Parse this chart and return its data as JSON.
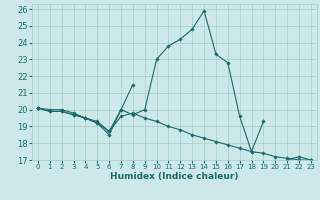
{
  "title": "",
  "xlabel": "Humidex (Indice chaleur)",
  "ylabel": "",
  "xlim": [
    -0.5,
    23.5
  ],
  "ylim": [
    17,
    26.3
  ],
  "yticks": [
    17,
    18,
    19,
    20,
    21,
    22,
    23,
    24,
    25,
    26
  ],
  "xticks": [
    0,
    1,
    2,
    3,
    4,
    5,
    6,
    7,
    8,
    9,
    10,
    11,
    12,
    13,
    14,
    15,
    16,
    17,
    18,
    19,
    20,
    21,
    22,
    23
  ],
  "background_color": "#cce8e8",
  "grid_color": "#aacccc",
  "line_color": "#1a6b6b",
  "lines": [
    [
      20.1,
      20.0,
      20.0,
      19.8,
      19.5,
      19.2,
      18.5,
      20.0,
      19.7,
      20.0,
      23.0,
      23.8,
      24.2,
      24.8,
      25.9,
      23.3,
      22.8,
      19.6,
      17.5,
      19.3,
      null,
      17.0,
      17.2,
      17.0
    ],
    [
      20.1,
      19.9,
      19.9,
      19.7,
      19.5,
      19.3,
      18.7,
      19.6,
      19.8,
      19.5,
      19.3,
      19.0,
      18.8,
      18.5,
      18.3,
      18.1,
      17.9,
      17.7,
      17.5,
      17.4,
      17.2,
      17.1,
      17.0,
      17.0
    ],
    [
      20.1,
      19.9,
      19.9,
      19.7,
      19.5,
      19.2,
      18.7,
      20.0,
      21.5,
      null,
      null,
      null,
      null,
      null,
      null,
      null,
      null,
      null,
      null,
      null,
      null,
      null,
      null,
      null
    ]
  ]
}
